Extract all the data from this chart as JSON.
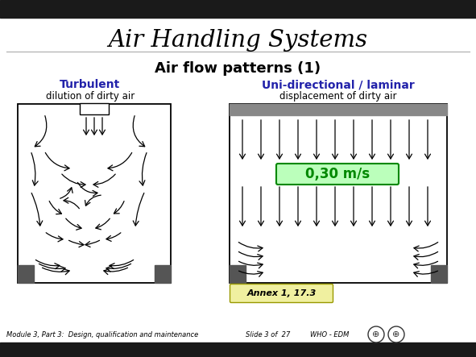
{
  "title": "Air Handling Systems",
  "subtitle": "Air flow patterns (1)",
  "turbulent_label": "Turbulent",
  "turbulent_sub": "dilution of dirty air",
  "laminar_label": "Uni-directional / laminar",
  "laminar_sub": "displacement of dirty air",
  "speed_label": "0,30 m/s",
  "annex_label": "Annex 1, 17.3",
  "footer": "Module 3, Part 3:  Design, qualification and maintenance",
  "footer2": "Slide 3 of  27",
  "footer3": "WHO - EDM",
  "bg_color": "#ffffff",
  "header_bg": "#1a1a1a",
  "label_color": "#2222aa",
  "speed_color": "#008800",
  "speed_bg": "#bbffbb",
  "annex_bg": "#f0f0a0",
  "gray_dark": "#555555",
  "gray_mid": "#888888",
  "gray_light": "#cccccc"
}
